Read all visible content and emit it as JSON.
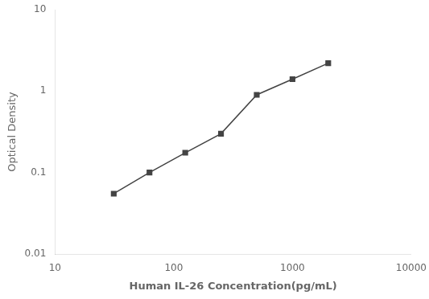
{
  "chart_data": {
    "type": "line",
    "x": [
      31.25,
      62.5,
      125,
      250,
      500,
      1000,
      2000
    ],
    "values": [
      0.055,
      0.1,
      0.175,
      0.3,
      0.9,
      1.4,
      2.2
    ],
    "x_label": "Human IL-26 Concentration(pg/mL)",
    "y_label": "Optical Density",
    "xlim": [
      10,
      10000
    ],
    "ylim": [
      0.01,
      10
    ],
    "xticks": [
      10,
      100,
      1000,
      10000
    ],
    "yticks": [
      0.01,
      0.1,
      1,
      10
    ],
    "log": true,
    "grid": false,
    "color": "#444444",
    "marker": "square",
    "line_style": "solid"
  }
}
